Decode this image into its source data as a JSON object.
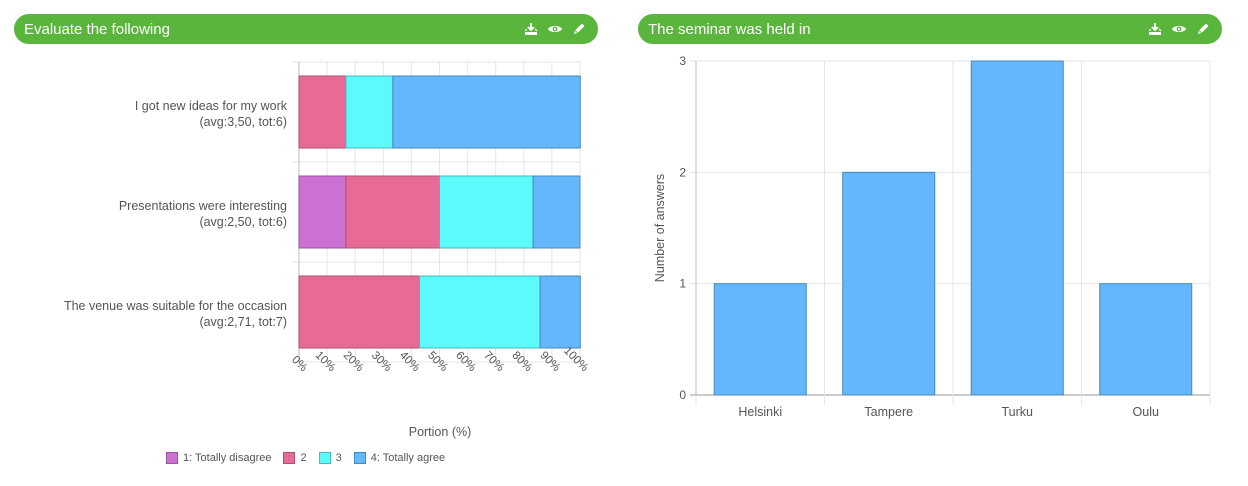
{
  "left_panel": {
    "title": "Evaluate the following",
    "icons": [
      "download-icon",
      "eye-icon",
      "pencil-icon"
    ]
  },
  "right_panel": {
    "title": "The seminar was held in",
    "icons": [
      "download-icon",
      "eye-icon",
      "pencil-icon"
    ]
  },
  "colors": {
    "header": "#5ab53d",
    "s1": "#cc70d4",
    "s2": "#e86b97",
    "s3": "#5cfafa",
    "s4": "#63b7fa"
  },
  "chart_data": [
    {
      "type": "bar",
      "orientation": "horizontal",
      "stacked": true,
      "categories": [
        [
          "I got new ideas for my work",
          "(avg:3,50, tot:6)"
        ],
        [
          "Presentations were interesting",
          "(avg:2,50, tot:6)"
        ],
        [
          "The venue was suitable for the occasion",
          "(avg:2,71, tot:7)"
        ]
      ],
      "series": [
        {
          "name": "1: Totally disagree",
          "values": [
            0,
            16.7,
            0
          ]
        },
        {
          "name": "2",
          "values": [
            16.7,
            33.3,
            42.9
          ]
        },
        {
          "name": "3",
          "values": [
            16.7,
            33.3,
            42.9
          ]
        },
        {
          "name": "4: Totally agree",
          "values": [
            66.7,
            16.7,
            14.3
          ]
        }
      ],
      "xlabel": "Portion (%)",
      "xlim": [
        0,
        100
      ],
      "xticks": [
        "0%",
        "10%",
        "20%",
        "30%",
        "40%",
        "50%",
        "60%",
        "70%",
        "80%",
        "90%",
        "100%"
      ],
      "grid": true,
      "legend": "bottom"
    },
    {
      "type": "bar",
      "categories": [
        "Helsinki",
        "Tampere",
        "Turku",
        "Oulu"
      ],
      "values": [
        1,
        2,
        3,
        1
      ],
      "ylabel": "Number of answers",
      "ylim": [
        0,
        3
      ],
      "yticks": [
        "0",
        "1",
        "2",
        "3"
      ],
      "grid": true
    }
  ]
}
